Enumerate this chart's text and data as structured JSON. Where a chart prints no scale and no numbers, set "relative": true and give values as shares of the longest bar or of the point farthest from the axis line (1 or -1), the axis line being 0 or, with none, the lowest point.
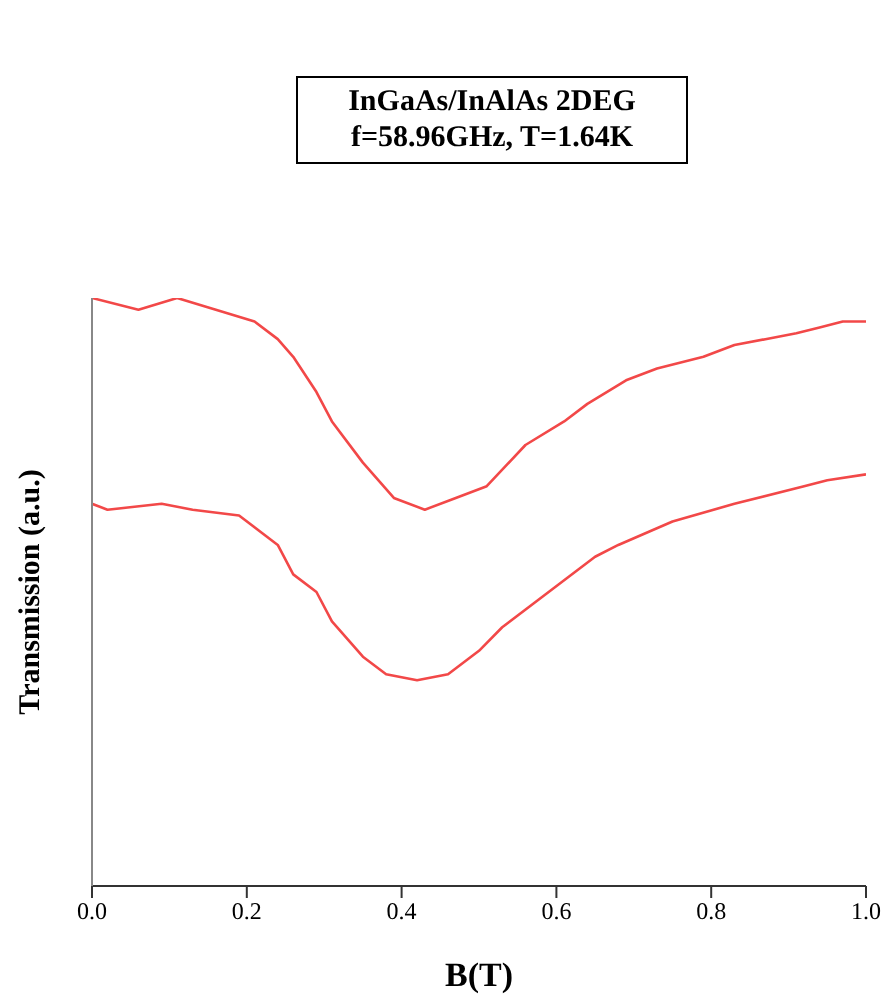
{
  "chart_data": {
    "type": "line",
    "relative": true,
    "title": "InGaAs/InAlAs 2DEG",
    "subtitle": "f=58.96GHz, T=1.64K",
    "xlabel": "B(T)",
    "ylabel": "Transmission (a.u.)",
    "xlim": [
      0,
      1
    ],
    "xticks": [
      {
        "value": 0,
        "label": "0.0"
      },
      0.2,
      0.4,
      0.6,
      0.8,
      {
        "value": 1,
        "label": "1.0"
      }
    ],
    "marker": "none",
    "line_style": "solid",
    "series": [
      {
        "color": "#f24848",
        "x": [
          0,
          0.06,
          0.11,
          0.16,
          0.21,
          0.24,
          0.26,
          0.29,
          0.31,
          0.35,
          0.39,
          0.43,
          0.47,
          0.51,
          0.56,
          0.61,
          0.64,
          0.69,
          0.73,
          0.79,
          0.83,
          0.87,
          0.91,
          0.94,
          0.97,
          1
        ],
        "values": [
          1,
          0.98,
          1,
          0.98,
          0.96,
          0.93,
          0.9,
          0.84,
          0.79,
          0.72,
          0.66,
          0.64,
          0.66,
          0.68,
          0.75,
          0.79,
          0.82,
          0.86,
          0.88,
          0.9,
          0.92,
          0.93,
          0.94,
          0.95,
          0.96,
          0.96
        ]
      },
      {
        "color": "#f24848",
        "x": [
          0,
          0.02,
          0.09,
          0.13,
          0.19,
          0.24,
          0.26,
          0.29,
          0.31,
          0.35,
          0.38,
          0.42,
          0.46,
          0.5,
          0.53,
          0.59,
          0.65,
          0.68,
          0.75,
          0.83,
          0.92,
          0.95,
          1
        ],
        "values": [
          0.65,
          0.64,
          0.65,
          0.64,
          0.63,
          0.58,
          0.53,
          0.5,
          0.45,
          0.39,
          0.36,
          0.35,
          0.36,
          0.4,
          0.44,
          0.5,
          0.56,
          0.58,
          0.62,
          0.65,
          0.68,
          0.69,
          0.7
        ]
      }
    ]
  }
}
